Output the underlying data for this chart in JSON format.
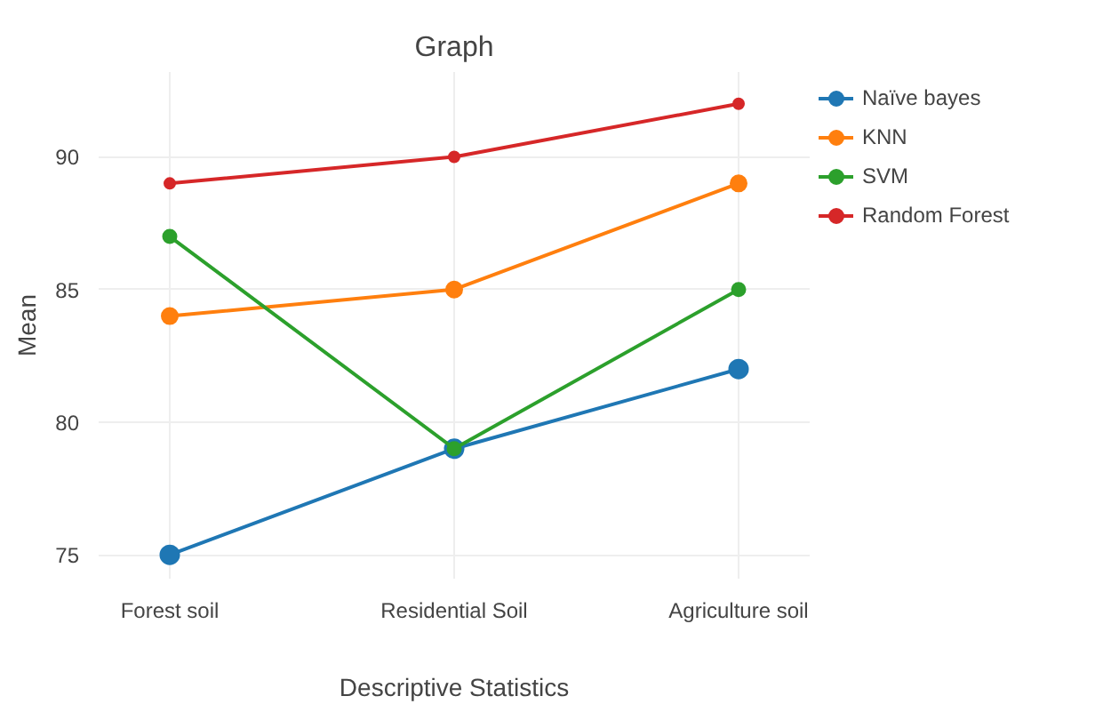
{
  "chart_data": {
    "type": "line",
    "title": "Graph",
    "xlabel": "Descriptive Statistics",
    "ylabel": "Mean",
    "categories": [
      "Forest soil",
      "Residential Soil",
      "Agriculture soil"
    ],
    "series": [
      {
        "name": "Naïve bayes",
        "color": "#1f77b4",
        "values": [
          75,
          79,
          82
        ]
      },
      {
        "name": "KNN",
        "color": "#ff7f0e",
        "values": [
          84,
          85,
          89
        ]
      },
      {
        "name": "SVM",
        "color": "#2ca02c",
        "values": [
          87,
          79,
          85
        ]
      },
      {
        "name": "Random Forest",
        "color": "#d62728",
        "values": [
          89,
          90,
          92
        ]
      }
    ],
    "ylim": [
      74.1,
      93.2
    ],
    "yticks": [
      75,
      80,
      85,
      90
    ],
    "grid": true,
    "legend": "top right",
    "marker": "circle",
    "line_style": "solid"
  }
}
